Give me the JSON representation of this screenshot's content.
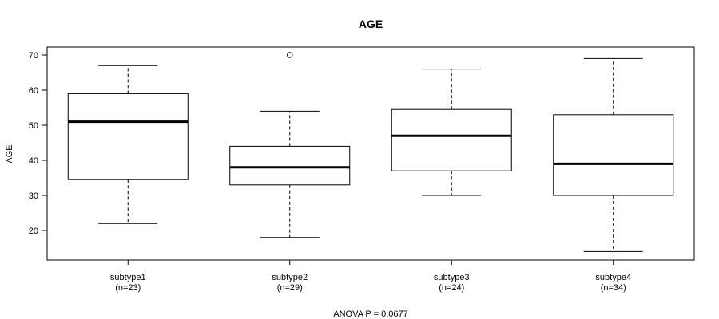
{
  "chart_data": {
    "type": "boxplot",
    "title": "AGE",
    "ylabel": "AGE",
    "xlabel": "",
    "footnote": "ANOVA P = 0.0677",
    "ylim": [
      12,
      72
    ],
    "yticks": [
      20,
      30,
      40,
      50,
      60,
      70
    ],
    "groups": [
      {
        "name": "subtype1",
        "n_label": "(n=23)",
        "min": 22,
        "q1": 34.5,
        "median": 51,
        "q3": 59,
        "max": 67,
        "outliers": []
      },
      {
        "name": "subtype2",
        "n_label": "(n=29)",
        "min": 18,
        "q1": 33,
        "median": 38,
        "q3": 44,
        "max": 54,
        "outliers": [
          70
        ]
      },
      {
        "name": "subtype3",
        "n_label": "(n=24)",
        "min": 30,
        "q1": 37,
        "median": 47,
        "q3": 54.5,
        "max": 66,
        "outliers": []
      },
      {
        "name": "subtype4",
        "n_label": "(n=34)",
        "min": 14,
        "q1": 30,
        "median": 39,
        "q3": 53,
        "max": 69,
        "outliers": []
      }
    ]
  }
}
